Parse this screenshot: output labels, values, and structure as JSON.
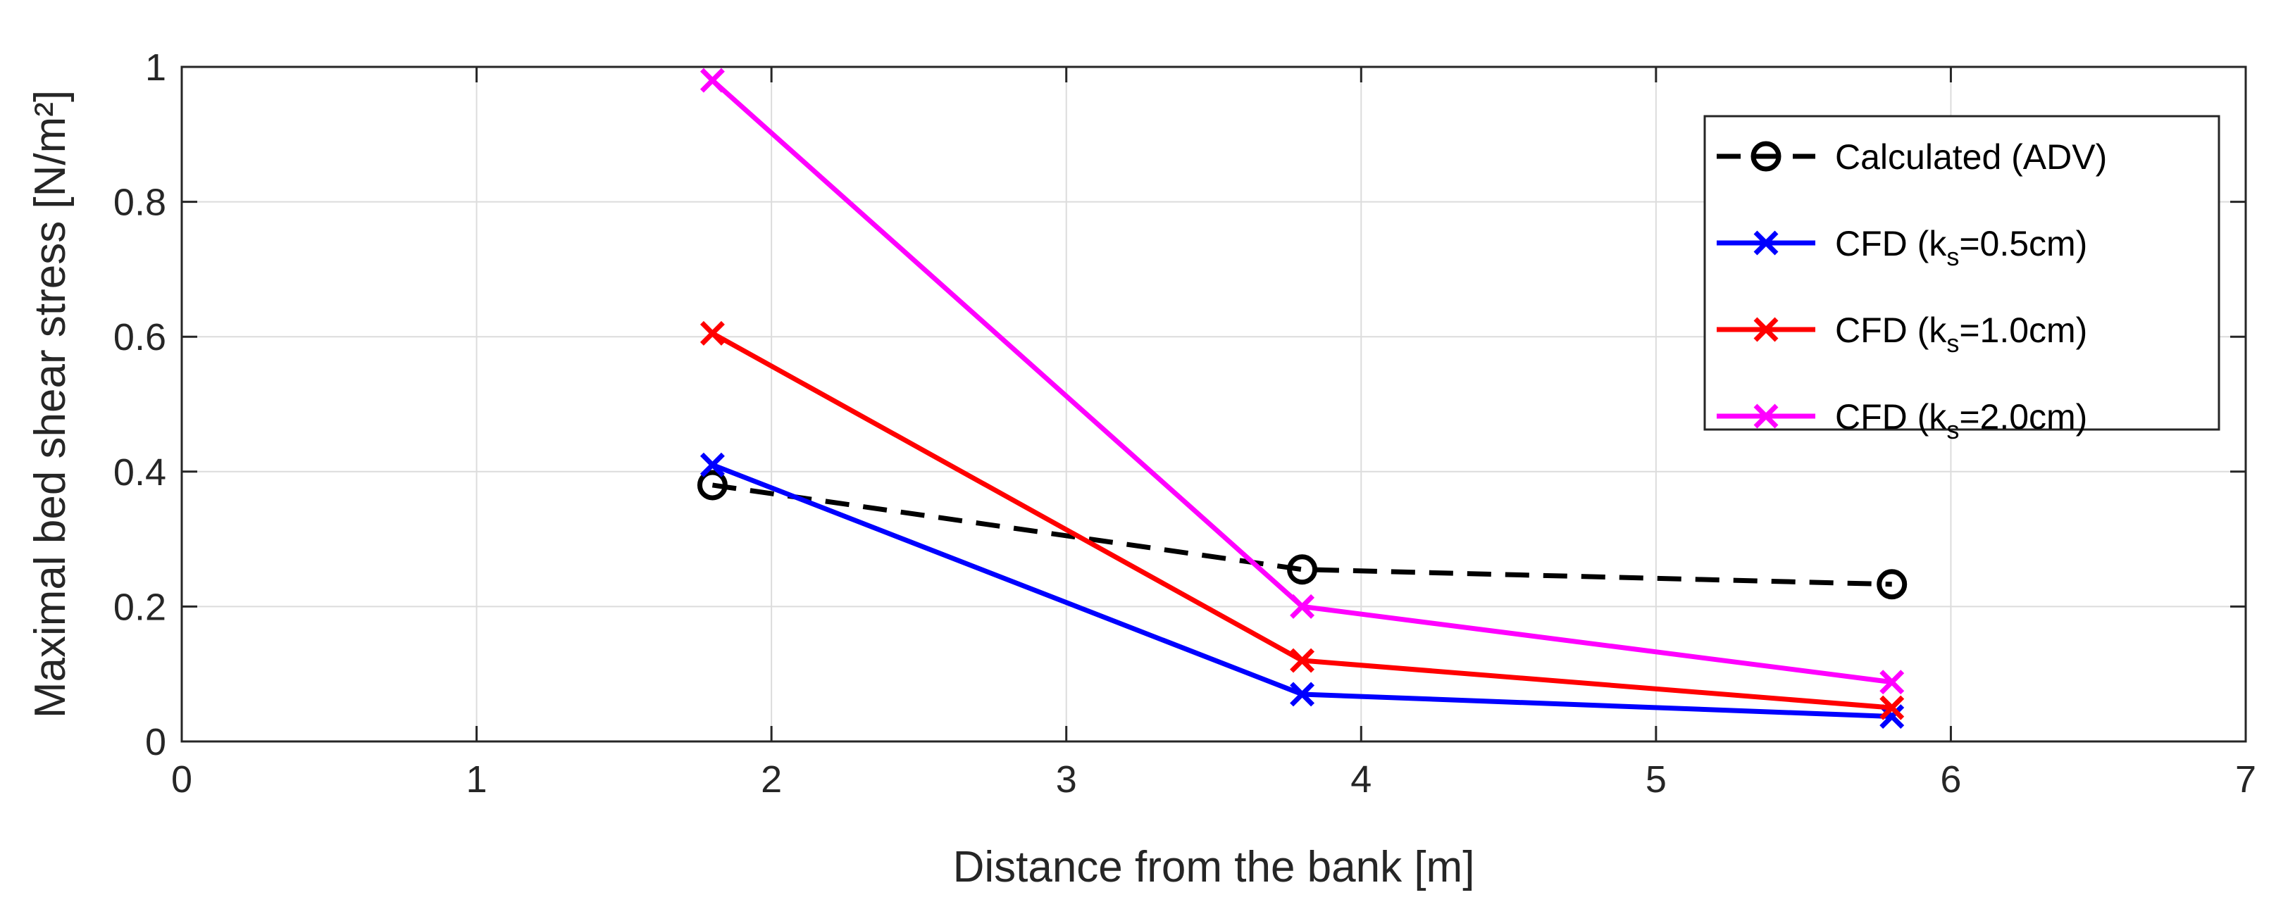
{
  "chart_data": {
    "type": "line",
    "xlabel": "Distance from the bank [m]",
    "ylabel": "Maximal bed shear stress [N/m²]",
    "xlim": [
      0,
      7
    ],
    "ylim": [
      0,
      1
    ],
    "xticks": [
      0,
      1,
      2,
      3,
      4,
      5,
      6,
      7
    ],
    "yticks": [
      0,
      0.2,
      0.4,
      0.6,
      0.8,
      1
    ],
    "ytick_labels": [
      "0",
      "0.2",
      "0.4",
      "0.6",
      "0.8",
      "1"
    ],
    "grid": true,
    "legend_position": "top-right",
    "x": [
      1.8,
      3.8,
      5.8
    ],
    "series": [
      {
        "name": "Calculated (ADV)",
        "legend_main": "Calculated (ADV)",
        "legend_sub": "",
        "legend_tail": "",
        "values": [
          0.38,
          0.255,
          0.233
        ],
        "color": "#000000",
        "marker": "circle",
        "dashed": true
      },
      {
        "name": "CFD (ks=0.5cm)",
        "legend_main": "CFD (k",
        "legend_sub": "s",
        "legend_tail": "=0.5cm)",
        "values": [
          0.41,
          0.07,
          0.037
        ],
        "color": "#0000ff",
        "marker": "x",
        "dashed": false
      },
      {
        "name": "CFD (ks=1.0cm)",
        "legend_main": "CFD (k",
        "legend_sub": "s",
        "legend_tail": "=1.0cm)",
        "values": [
          0.605,
          0.12,
          0.05
        ],
        "color": "#ff0000",
        "marker": "x",
        "dashed": false
      },
      {
        "name": "CFD (ks=2.0cm)",
        "legend_main": "CFD (k",
        "legend_sub": "s",
        "legend_tail": "=2.0cm)",
        "values": [
          0.98,
          0.2,
          0.088
        ],
        "color": "#ff00ff",
        "marker": "x",
        "dashed": false
      }
    ]
  }
}
